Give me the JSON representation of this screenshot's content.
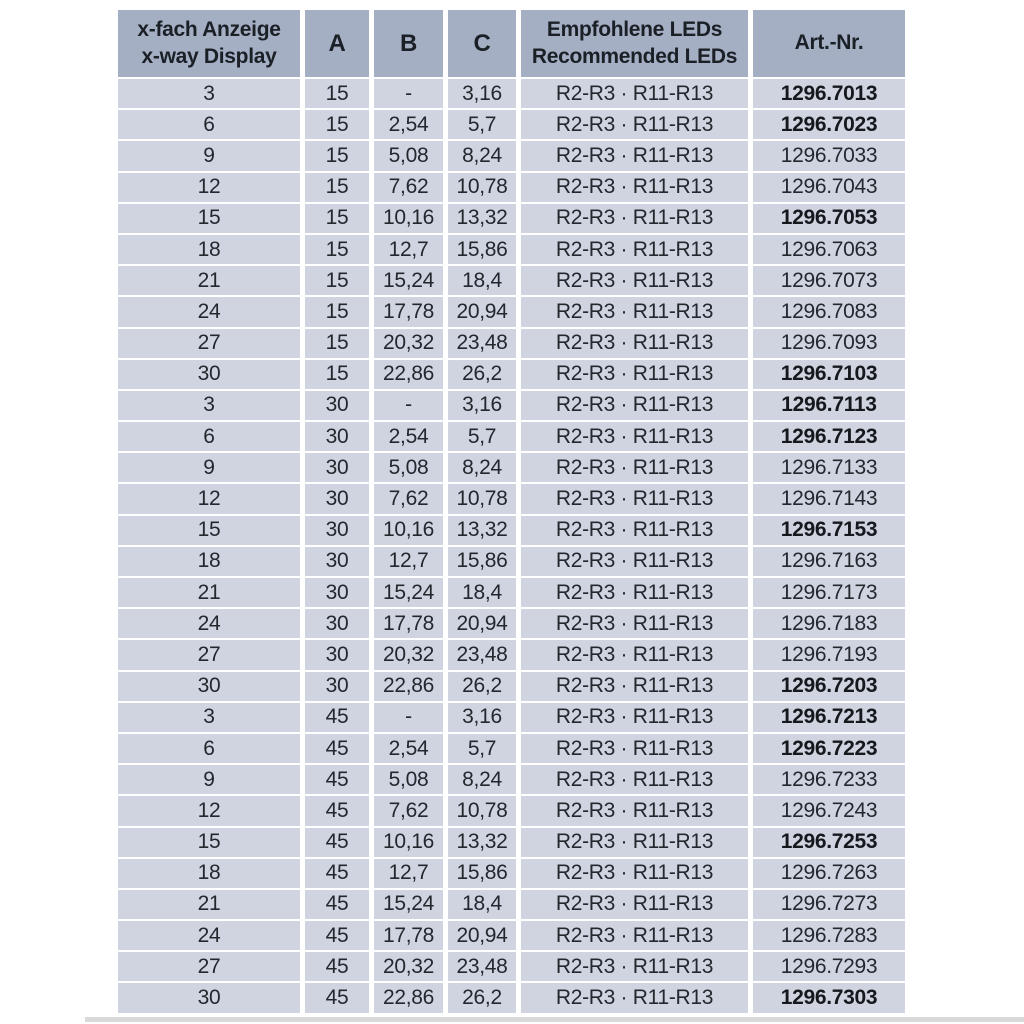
{
  "colors": {
    "header_bg": "#a4afc4",
    "row_bg": "#cfd4e0",
    "text": "#23272e",
    "header_text": "#1b1f26",
    "bold_art_text": "#15181d",
    "bottom_strip": "#d9d9d9",
    "page_bg": "#ffffff"
  },
  "table": {
    "headers": {
      "display_line1": "x-fach Anzeige",
      "display_line2": "x-way Display",
      "a": "A",
      "b": "B",
      "c": "C",
      "leds_line1": "Empfohlene LEDs",
      "leds_line2": "Recommended LEDs",
      "art": "Art.-Nr."
    },
    "rows": [
      {
        "display": "3",
        "a": "15",
        "b": "-",
        "c": "3,16",
        "leds": "R2-R3 · R11-R13",
        "art": "1296.7013",
        "art_bold": true
      },
      {
        "display": "6",
        "a": "15",
        "b": "2,54",
        "c": "5,7",
        "leds": "R2-R3 · R11-R13",
        "art": "1296.7023",
        "art_bold": true
      },
      {
        "display": "9",
        "a": "15",
        "b": "5,08",
        "c": "8,24",
        "leds": "R2-R3 · R11-R13",
        "art": "1296.7033",
        "art_bold": false
      },
      {
        "display": "12",
        "a": "15",
        "b": "7,62",
        "c": "10,78",
        "leds": "R2-R3 · R11-R13",
        "art": "1296.7043",
        "art_bold": false
      },
      {
        "display": "15",
        "a": "15",
        "b": "10,16",
        "c": "13,32",
        "leds": "R2-R3 · R11-R13",
        "art": "1296.7053",
        "art_bold": true
      },
      {
        "display": "18",
        "a": "15",
        "b": "12,7",
        "c": "15,86",
        "leds": "R2-R3 · R11-R13",
        "art": "1296.7063",
        "art_bold": false
      },
      {
        "display": "21",
        "a": "15",
        "b": "15,24",
        "c": "18,4",
        "leds": "R2-R3 · R11-R13",
        "art": "1296.7073",
        "art_bold": false
      },
      {
        "display": "24",
        "a": "15",
        "b": "17,78",
        "c": "20,94",
        "leds": "R2-R3 · R11-R13",
        "art": "1296.7083",
        "art_bold": false
      },
      {
        "display": "27",
        "a": "15",
        "b": "20,32",
        "c": "23,48",
        "leds": "R2-R3 · R11-R13",
        "art": "1296.7093",
        "art_bold": false
      },
      {
        "display": "30",
        "a": "15",
        "b": "22,86",
        "c": "26,2",
        "leds": "R2-R3 · R11-R13",
        "art": "1296.7103",
        "art_bold": true
      },
      {
        "display": "3",
        "a": "30",
        "b": "-",
        "c": "3,16",
        "leds": "R2-R3 · R11-R13",
        "art": "1296.7113",
        "art_bold": true
      },
      {
        "display": "6",
        "a": "30",
        "b": "2,54",
        "c": "5,7",
        "leds": "R2-R3 · R11-R13",
        "art": "1296.7123",
        "art_bold": true
      },
      {
        "display": "9",
        "a": "30",
        "b": "5,08",
        "c": "8,24",
        "leds": "R2-R3 · R11-R13",
        "art": "1296.7133",
        "art_bold": false
      },
      {
        "display": "12",
        "a": "30",
        "b": "7,62",
        "c": "10,78",
        "leds": "R2-R3 · R11-R13",
        "art": "1296.7143",
        "art_bold": false
      },
      {
        "display": "15",
        "a": "30",
        "b": "10,16",
        "c": "13,32",
        "leds": "R2-R3 · R11-R13",
        "art": "1296.7153",
        "art_bold": true
      },
      {
        "display": "18",
        "a": "30",
        "b": "12,7",
        "c": "15,86",
        "leds": "R2-R3 · R11-R13",
        "art": "1296.7163",
        "art_bold": false
      },
      {
        "display": "21",
        "a": "30",
        "b": "15,24",
        "c": "18,4",
        "leds": "R2-R3 · R11-R13",
        "art": "1296.7173",
        "art_bold": false
      },
      {
        "display": "24",
        "a": "30",
        "b": "17,78",
        "c": "20,94",
        "leds": "R2-R3 · R11-R13",
        "art": "1296.7183",
        "art_bold": false
      },
      {
        "display": "27",
        "a": "30",
        "b": "20,32",
        "c": "23,48",
        "leds": "R2-R3 · R11-R13",
        "art": "1296.7193",
        "art_bold": false
      },
      {
        "display": "30",
        "a": "30",
        "b": "22,86",
        "c": "26,2",
        "leds": "R2-R3 · R11-R13",
        "art": "1296.7203",
        "art_bold": true
      },
      {
        "display": "3",
        "a": "45",
        "b": "-",
        "c": "3,16",
        "leds": "R2-R3 · R11-R13",
        "art": "1296.7213",
        "art_bold": true
      },
      {
        "display": "6",
        "a": "45",
        "b": "2,54",
        "c": "5,7",
        "leds": "R2-R3 · R11-R13",
        "art": "1296.7223",
        "art_bold": true
      },
      {
        "display": "9",
        "a": "45",
        "b": "5,08",
        "c": "8,24",
        "leds": "R2-R3 · R11-R13",
        "art": "1296.7233",
        "art_bold": false
      },
      {
        "display": "12",
        "a": "45",
        "b": "7,62",
        "c": "10,78",
        "leds": "R2-R3 · R11-R13",
        "art": "1296.7243",
        "art_bold": false
      },
      {
        "display": "15",
        "a": "45",
        "b": "10,16",
        "c": "13,32",
        "leds": "R2-R3 · R11-R13",
        "art": "1296.7253",
        "art_bold": true
      },
      {
        "display": "18",
        "a": "45",
        "b": "12,7",
        "c": "15,86",
        "leds": "R2-R3 · R11-R13",
        "art": "1296.7263",
        "art_bold": false
      },
      {
        "display": "21",
        "a": "45",
        "b": "15,24",
        "c": "18,4",
        "leds": "R2-R3 · R11-R13",
        "art": "1296.7273",
        "art_bold": false
      },
      {
        "display": "24",
        "a": "45",
        "b": "17,78",
        "c": "20,94",
        "leds": "R2-R3 · R11-R13",
        "art": "1296.7283",
        "art_bold": false
      },
      {
        "display": "27",
        "a": "45",
        "b": "20,32",
        "c": "23,48",
        "leds": "R2-R3 · R11-R13",
        "art": "1296.7293",
        "art_bold": false
      },
      {
        "display": "30",
        "a": "45",
        "b": "22,86",
        "c": "26,2",
        "leds": "R2-R3 · R11-R13",
        "art": "1296.7303",
        "art_bold": true
      }
    ]
  }
}
